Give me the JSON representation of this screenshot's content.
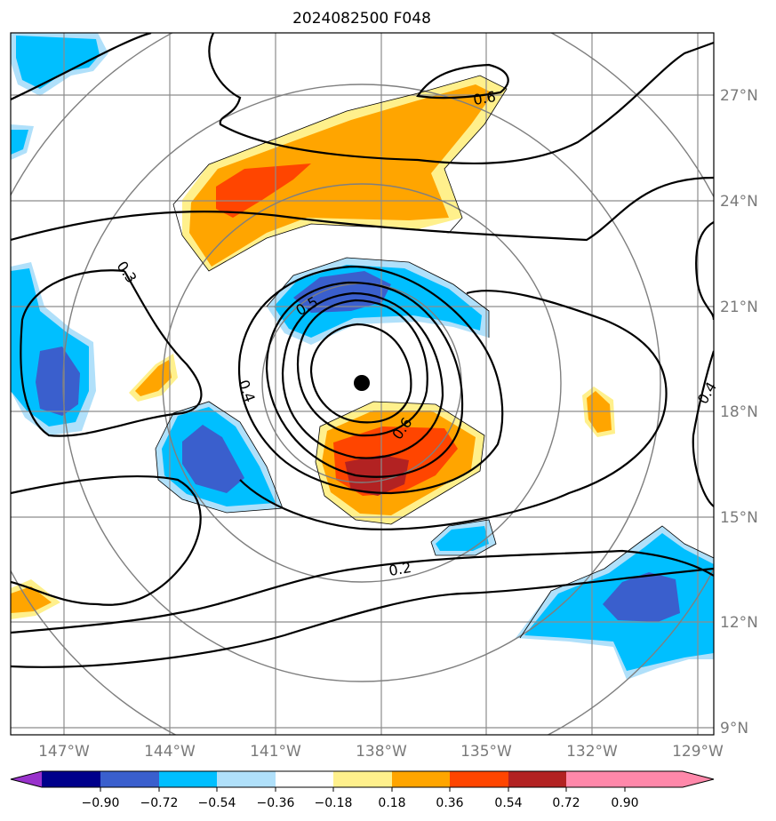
{
  "figure": {
    "title": "2024082500 F048"
  },
  "map": {
    "lon_labels": [
      "147°W",
      "144°W",
      "141°W",
      "138°W",
      "135°W",
      "132°W",
      "129°W"
    ],
    "lat_labels": [
      "27°N",
      "24°N",
      "21°N",
      "18°N",
      "15°N",
      "12°N",
      "9°N"
    ],
    "storm_center": {
      "lon": -138.5,
      "lat": 18.8
    },
    "contour_labels": [
      "0.6",
      "0.3",
      "0.5",
      "0.4",
      "0.6",
      "0.2",
      "0.4"
    ]
  },
  "colorbar": {
    "ticks": [
      "−0.90",
      "−0.72",
      "−0.54",
      "−0.36",
      "−0.18",
      "0.18",
      "0.36",
      "0.54",
      "0.72",
      "0.90"
    ],
    "colors": [
      "#9932cc",
      "#00008b",
      "#3a5fcd",
      "#00bfff",
      "#b0e0fa",
      "#ffffff",
      "#fff08c",
      "#ffa500",
      "#ff4500",
      "#b22222",
      "#ff88aa"
    ]
  }
}
